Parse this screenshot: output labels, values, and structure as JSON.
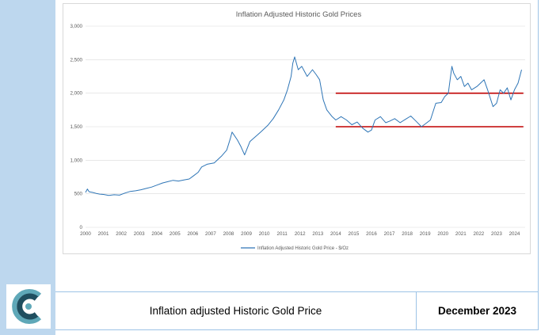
{
  "chart_data": {
    "type": "line",
    "title": "Inflation Adjusted Historic Gold Prices",
    "xlabel": "",
    "ylabel": "",
    "xlim": [
      2000,
      2024.6
    ],
    "ylim": [
      0,
      3000
    ],
    "y_ticks": [
      0,
      500,
      1000,
      1500,
      2000,
      2500,
      3000
    ],
    "y_tick_labels": [
      "0",
      "500",
      "1,000",
      "1,500",
      "2,000",
      "2,500",
      "3,000"
    ],
    "x_ticks": [
      2000,
      2001,
      2002,
      2003,
      2004,
      2005,
      2006,
      2007,
      2008,
      2009,
      2010,
      2011,
      2012,
      2013,
      2014,
      2015,
      2016,
      2017,
      2018,
      2019,
      2020,
      2021,
      2022,
      2023,
      2024
    ],
    "x_tick_labels": [
      "2000",
      "2001",
      "2002",
      "2003",
      "2004",
      "2005",
      "2006",
      "2007",
      "2008",
      "2009",
      "2010",
      "2011",
      "2012",
      "2013",
      "2014",
      "2015",
      "2016",
      "2017",
      "2018",
      "2019",
      "2020",
      "2021",
      "2022",
      "2023",
      "2024"
    ],
    "legend": "bottom",
    "series": [
      {
        "name": "Inflation Adjusted Historic Gold Price - $/Oz",
        "color": "#2e75b6",
        "x": [
          2000.0,
          2000.1,
          2000.2,
          2000.4,
          2000.6,
          2000.8,
          2001.0,
          2001.3,
          2001.6,
          2001.9,
          2002.2,
          2002.5,
          2002.8,
          2003.1,
          2003.4,
          2003.7,
          2004.0,
          2004.3,
          2004.6,
          2004.9,
          2005.2,
          2005.5,
          2005.8,
          2006.0,
          2006.3,
          2006.5,
          2006.8,
          2007.2,
          2007.6,
          2007.9,
          2008.1,
          2008.2,
          2008.5,
          2008.7,
          2008.9,
          2009.2,
          2009.5,
          2009.8,
          2010.2,
          2010.5,
          2010.8,
          2011.1,
          2011.3,
          2011.5,
          2011.6,
          2011.7,
          2011.9,
          2012.1,
          2012.4,
          2012.7,
          2012.9,
          2013.1,
          2013.3,
          2013.5,
          2013.8,
          2014.0,
          2014.3,
          2014.6,
          2014.9,
          2015.2,
          2015.5,
          2015.8,
          2016.0,
          2016.2,
          2016.5,
          2016.8,
          2017.0,
          2017.3,
          2017.6,
          2017.9,
          2018.2,
          2018.5,
          2018.8,
          2019.0,
          2019.3,
          2019.6,
          2019.9,
          2020.1,
          2020.3,
          2020.5,
          2020.6,
          2020.8,
          2021.0,
          2021.2,
          2021.4,
          2021.6,
          2021.9,
          2022.1,
          2022.3,
          2022.5,
          2022.8,
          2023.0,
          2023.2,
          2023.4,
          2023.6,
          2023.8,
          2024.0,
          2024.2,
          2024.4
        ],
        "values": [
          520,
          570,
          530,
          520,
          505,
          495,
          490,
          475,
          485,
          480,
          510,
          535,
          545,
          560,
          580,
          600,
          630,
          660,
          680,
          700,
          690,
          705,
          720,
          760,
          820,
          900,
          940,
          960,
          1060,
          1150,
          1320,
          1420,
          1300,
          1200,
          1080,
          1280,
          1350,
          1420,
          1520,
          1620,
          1750,
          1900,
          2050,
          2250,
          2450,
          2540,
          2350,
          2400,
          2250,
          2350,
          2280,
          2200,
          1900,
          1750,
          1650,
          1600,
          1650,
          1600,
          1530,
          1570,
          1480,
          1420,
          1450,
          1600,
          1650,
          1560,
          1580,
          1620,
          1560,
          1610,
          1660,
          1580,
          1500,
          1540,
          1600,
          1850,
          1860,
          1950,
          2000,
          2400,
          2300,
          2200,
          2250,
          2100,
          2150,
          2050,
          2100,
          2150,
          2200,
          2050,
          1800,
          1850,
          2050,
          2000,
          2080,
          1900,
          2050,
          2150,
          2350
        ]
      }
    ],
    "annotations": [
      {
        "type": "hline",
        "y": 2000,
        "x_start": 2014.0,
        "x_end": 2024.5,
        "color": "#c00000"
      },
      {
        "type": "hline",
        "y": 1500,
        "x_start": 2014.0,
        "x_end": 2024.5,
        "color": "#c00000"
      }
    ]
  },
  "footer": {
    "title": "Inflation adjusted Historic Gold Price",
    "date": "December 2023"
  },
  "colors": {
    "side_bar": "#bdd7ee",
    "footer_lines": "#9dc3e6",
    "logo_dark": "#1f4e5f",
    "logo_teal": "#5fa8b8"
  }
}
